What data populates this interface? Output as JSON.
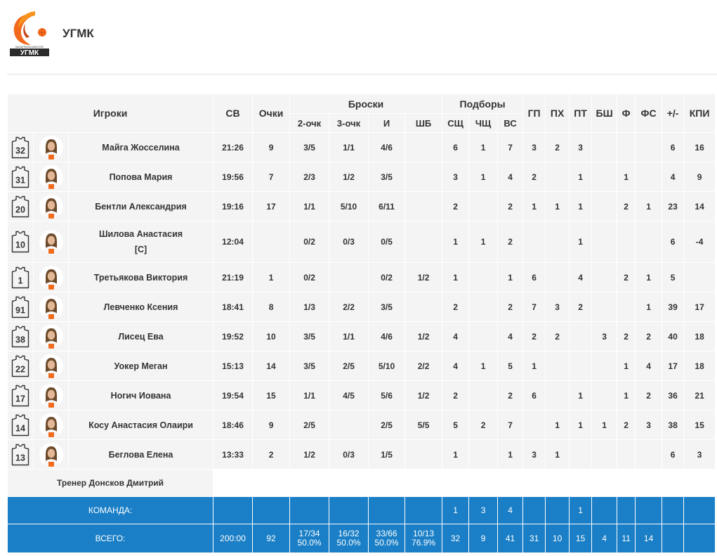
{
  "team": {
    "name": "УГМК",
    "logo_caption": "БАСКЕТБОЛЬНЫЙ КЛУБ",
    "logo_text": "УГМК"
  },
  "colors": {
    "accent": "#1a7fc6",
    "row_bg": "#f4f4f4",
    "logo_orange": "#f26a1b",
    "logo_dark": "#2b2b2b"
  },
  "headers": {
    "players": "Игроки",
    "min": "СВ",
    "pts": "Очки",
    "shots": "Броски",
    "fg2": "2-очк",
    "fg3": "3-очк",
    "fg": "И",
    "ft": "ШБ",
    "rebounds": "Подборы",
    "off": "СЩ",
    "def": "ЧЩ",
    "tot": "ВС",
    "ast": "ГП",
    "to": "ПХ",
    "stl": "ПТ",
    "blk": "БШ",
    "pf": "Ф",
    "fd": "ФС",
    "pm": "+/-",
    "eff": "КПИ"
  },
  "players": [
    {
      "number": "32",
      "name": "Майга Жосселина",
      "captain": "",
      "min": "21:26",
      "pts": "9",
      "fg2": "3/5",
      "fg3": "1/1",
      "fg": "4/6",
      "ft": "",
      "off": "6",
      "def": "1",
      "tot": "7",
      "ast": "3",
      "to": "2",
      "stl": "3",
      "blk": "",
      "pf": "",
      "fd": "",
      "pm": "6",
      "eff": "16"
    },
    {
      "number": "31",
      "name": "Попова Мария",
      "captain": "",
      "min": "19:56",
      "pts": "7",
      "fg2": "2/3",
      "fg3": "1/2",
      "fg": "3/5",
      "ft": "",
      "off": "3",
      "def": "1",
      "tot": "4",
      "ast": "2",
      "to": "",
      "stl": "1",
      "blk": "",
      "pf": "1",
      "fd": "",
      "pm": "4",
      "eff": "9"
    },
    {
      "number": "20",
      "name": "Бентли Александрия",
      "captain": "",
      "min": "19:16",
      "pts": "17",
      "fg2": "1/1",
      "fg3": "5/10",
      "fg": "6/11",
      "ft": "",
      "off": "2",
      "def": "",
      "tot": "2",
      "ast": "1",
      "to": "1",
      "stl": "1",
      "blk": "",
      "pf": "2",
      "fd": "1",
      "pm": "23",
      "eff": "14"
    },
    {
      "number": "10",
      "name": "Шилова Анастасия",
      "captain": "[C]",
      "min": "12:04",
      "pts": "",
      "fg2": "0/2",
      "fg3": "0/3",
      "fg": "0/5",
      "ft": "",
      "off": "1",
      "def": "1",
      "tot": "2",
      "ast": "",
      "to": "",
      "stl": "1",
      "blk": "",
      "pf": "",
      "fd": "",
      "pm": "6",
      "eff": "-4"
    },
    {
      "number": "1",
      "name": "Третьякова Виктория",
      "captain": "",
      "min": "21:19",
      "pts": "1",
      "fg2": "0/2",
      "fg3": "",
      "fg": "0/2",
      "ft": "1/2",
      "off": "1",
      "def": "",
      "tot": "1",
      "ast": "6",
      "to": "",
      "stl": "4",
      "blk": "",
      "pf": "2",
      "fd": "1",
      "pm": "5",
      "eff": ""
    },
    {
      "number": "91",
      "name": "Левченко Ксения",
      "captain": "",
      "min": "18:41",
      "pts": "8",
      "fg2": "1/3",
      "fg3": "2/2",
      "fg": "3/5",
      "ft": "",
      "off": "2",
      "def": "",
      "tot": "2",
      "ast": "7",
      "to": "3",
      "stl": "2",
      "blk": "",
      "pf": "",
      "fd": "1",
      "pm": "39",
      "eff": "17"
    },
    {
      "number": "38",
      "name": "Лисец Ева",
      "captain": "",
      "min": "19:52",
      "pts": "10",
      "fg2": "3/5",
      "fg3": "1/1",
      "fg": "4/6",
      "ft": "1/2",
      "off": "4",
      "def": "",
      "tot": "4",
      "ast": "2",
      "to": "2",
      "stl": "",
      "blk": "3",
      "pf": "2",
      "fd": "2",
      "pm": "40",
      "eff": "18"
    },
    {
      "number": "22",
      "name": "Уокер Меган",
      "captain": "",
      "min": "15:13",
      "pts": "14",
      "fg2": "3/5",
      "fg3": "2/5",
      "fg": "5/10",
      "ft": "2/2",
      "off": "4",
      "def": "1",
      "tot": "5",
      "ast": "1",
      "to": "",
      "stl": "",
      "blk": "",
      "pf": "1",
      "fd": "4",
      "pm": "17",
      "eff": "18"
    },
    {
      "number": "17",
      "name": "Ногич Иована",
      "captain": "",
      "min": "19:54",
      "pts": "15",
      "fg2": "1/1",
      "fg3": "4/5",
      "fg": "5/6",
      "ft": "1/2",
      "off": "2",
      "def": "",
      "tot": "2",
      "ast": "6",
      "to": "",
      "stl": "1",
      "blk": "",
      "pf": "1",
      "fd": "2",
      "pm": "36",
      "eff": "21"
    },
    {
      "number": "14",
      "name": "Косу Анастасия Олаири",
      "captain": "",
      "min": "18:46",
      "pts": "9",
      "fg2": "2/5",
      "fg3": "",
      "fg": "2/5",
      "ft": "5/5",
      "off": "5",
      "def": "2",
      "tot": "7",
      "ast": "",
      "to": "1",
      "stl": "1",
      "blk": "1",
      "pf": "2",
      "fd": "3",
      "pm": "38",
      "eff": "15"
    },
    {
      "number": "13",
      "name": "Беглова Елена",
      "captain": "",
      "min": "13:33",
      "pts": "2",
      "fg2": "1/2",
      "fg3": "0/3",
      "fg": "1/5",
      "ft": "",
      "off": "1",
      "def": "",
      "tot": "1",
      "ast": "3",
      "to": "1",
      "stl": "",
      "blk": "",
      "pf": "",
      "fd": "",
      "pm": "6",
      "eff": "3"
    }
  ],
  "coach": "Тренер Донсков Дмитрий",
  "team_row": {
    "label": "КОМАНДА:",
    "off": "1",
    "def": "3",
    "tot": "4",
    "stl": "1"
  },
  "total_row": {
    "label": "ВСЕГО:",
    "min": "200:00",
    "pts": "92",
    "fg2": "17/34",
    "fg2_pct": "50.0%",
    "fg3": "16/32",
    "fg3_pct": "50.0%",
    "fg": "33/66",
    "fg_pct": "50.0%",
    "ft": "10/13",
    "ft_pct": "76.9%",
    "off": "32",
    "def": "9",
    "tot": "41",
    "ast": "31",
    "to": "10",
    "stl": "15",
    "blk": "4",
    "pf": "11",
    "fd": "14"
  }
}
